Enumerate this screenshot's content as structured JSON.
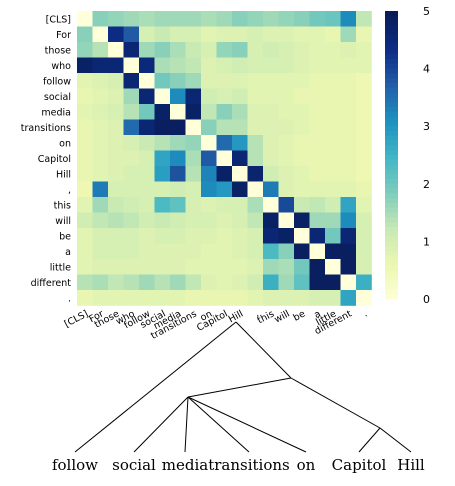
{
  "chart_data": {
    "type": "heatmap",
    "tokens": [
      "[CLS]",
      "For",
      "those",
      "who",
      "follow",
      "social",
      "media",
      "transitions",
      "on",
      "Capitol",
      "Hill",
      ",",
      "this",
      "will",
      "be",
      "a",
      "little",
      "different",
      "."
    ],
    "colorbar": {
      "min": 0,
      "max": 5,
      "ticks": [
        "0",
        "1",
        "2",
        "3",
        "4",
        "5"
      ]
    },
    "colorscale": [
      "#ffffd9",
      "#edf8b1",
      "#c7e9b4",
      "#7fcdbb",
      "#41b6c4",
      "#1d91c0",
      "#225ea8",
      "#0c2c84",
      "#081d58"
    ],
    "matrix": [
      [
        0,
        1.8,
        1.7,
        1.6,
        1.5,
        1.6,
        1.6,
        1.6,
        1.5,
        1.6,
        1.8,
        1.7,
        1.6,
        1.7,
        1.8,
        2.0,
        2.1,
        3.2,
        1.3
      ],
      [
        1.8,
        0,
        4.4,
        3.8,
        1.0,
        1.2,
        1.0,
        1.0,
        0.8,
        0.9,
        0.9,
        1.0,
        0.9,
        0.9,
        0.8,
        0.8,
        0.7,
        1.6,
        0.7
      ],
      [
        1.7,
        1.4,
        0,
        4.6,
        1.6,
        1.8,
        1.5,
        1.2,
        1.0,
        1.7,
        1.8,
        1.0,
        1.1,
        1.0,
        0.9,
        0.8,
        0.8,
        0.9,
        0.8
      ],
      [
        4.8,
        4.6,
        4.6,
        0,
        4.5,
        1.5,
        1.4,
        1.3,
        0.9,
        1.0,
        1.1,
        1.0,
        1.0,
        1.0,
        0.9,
        0.8,
        0.8,
        0.8,
        0.8
      ],
      [
        0.8,
        0.9,
        1.0,
        4.6,
        0,
        2.0,
        1.8,
        1.6,
        0.9,
        0.9,
        0.9,
        0.8,
        0.8,
        0.8,
        0.8,
        0.7,
        0.7,
        0.7,
        0.6
      ],
      [
        0.7,
        0.8,
        0.9,
        1.6,
        4.6,
        0,
        3.2,
        4.6,
        1.1,
        1.0,
        1.1,
        0.8,
        0.8,
        0.8,
        0.7,
        0.7,
        0.7,
        0.7,
        0.6
      ],
      [
        0.8,
        0.9,
        1.0,
        1.4,
        2.0,
        4.8,
        0,
        4.8,
        1.3,
        1.8,
        1.5,
        0.9,
        0.9,
        0.8,
        0.8,
        0.7,
        0.7,
        0.7,
        0.6
      ],
      [
        0.7,
        0.8,
        0.9,
        3.6,
        4.6,
        4.9,
        4.9,
        0,
        1.8,
        1.4,
        1.4,
        0.9,
        0.9,
        0.9,
        0.8,
        0.7,
        0.7,
        0.7,
        0.6
      ],
      [
        0.7,
        0.8,
        0.9,
        1.0,
        1.2,
        1.4,
        1.6,
        1.7,
        0,
        3.6,
        3.0,
        1.4,
        0.9,
        0.8,
        0.7,
        0.7,
        0.7,
        0.7,
        0.6
      ],
      [
        0.7,
        0.8,
        0.9,
        0.9,
        1.0,
        2.8,
        3.2,
        1.5,
        3.8,
        0,
        4.6,
        1.4,
        0.9,
        0.8,
        0.7,
        0.7,
        0.7,
        0.7,
        0.6
      ],
      [
        0.7,
        0.8,
        0.9,
        1.0,
        1.0,
        2.9,
        3.9,
        1.4,
        3.3,
        4.8,
        0,
        4.7,
        1.1,
        0.9,
        0.8,
        0.7,
        0.7,
        0.7,
        0.6
      ],
      [
        0.6,
        3.4,
        1.0,
        1.0,
        1.0,
        1.0,
        1.1,
        1.0,
        3.2,
        3.0,
        4.8,
        0,
        3.4,
        0.9,
        0.8,
        0.8,
        0.8,
        0.8,
        0.7
      ],
      [
        0.8,
        1.6,
        1.2,
        1.1,
        1.0,
        2.4,
        2.2,
        1.0,
        0.9,
        1.0,
        1.0,
        1.5,
        0,
        4.0,
        1.2,
        1.3,
        1.1,
        2.8,
        0.8
      ],
      [
        1.1,
        1.3,
        1.4,
        1.3,
        1.1,
        1.2,
        1.1,
        1.0,
        1.0,
        0.9,
        1.0,
        1.3,
        4.8,
        0,
        4.8,
        1.6,
        1.6,
        3.2,
        1.0
      ],
      [
        0.8,
        1.0,
        1.0,
        1.0,
        0.9,
        1.0,
        1.0,
        0.9,
        0.9,
        0.8,
        0.9,
        1.0,
        4.6,
        4.8,
        0,
        4.6,
        2.0,
        4.6,
        1.0
      ],
      [
        0.8,
        1.0,
        1.0,
        1.0,
        0.9,
        0.9,
        0.9,
        0.9,
        0.8,
        0.8,
        0.9,
        1.0,
        2.4,
        1.8,
        4.9,
        0,
        4.9,
        4.9,
        1.0
      ],
      [
        0.8,
        0.9,
        0.9,
        0.9,
        0.9,
        0.9,
        0.9,
        0.8,
        0.8,
        0.8,
        0.8,
        0.9,
        1.6,
        1.5,
        2.0,
        4.9,
        0,
        4.9,
        1.0
      ],
      [
        1.4,
        1.5,
        1.3,
        1.4,
        1.6,
        1.4,
        1.6,
        1.3,
        0.9,
        0.8,
        0.9,
        1.1,
        2.6,
        1.6,
        2.2,
        4.9,
        4.9,
        0,
        2.6
      ],
      [
        0.7,
        0.8,
        0.8,
        0.8,
        0.8,
        0.8,
        0.8,
        0.7,
        0.7,
        0.7,
        0.7,
        0.8,
        0.9,
        0.9,
        0.9,
        1.0,
        1.0,
        2.8,
        0
      ]
    ]
  },
  "tree": {
    "words": [
      "follow",
      "social",
      "media",
      "transitions",
      "on",
      "Capitol",
      "Hill"
    ]
  }
}
